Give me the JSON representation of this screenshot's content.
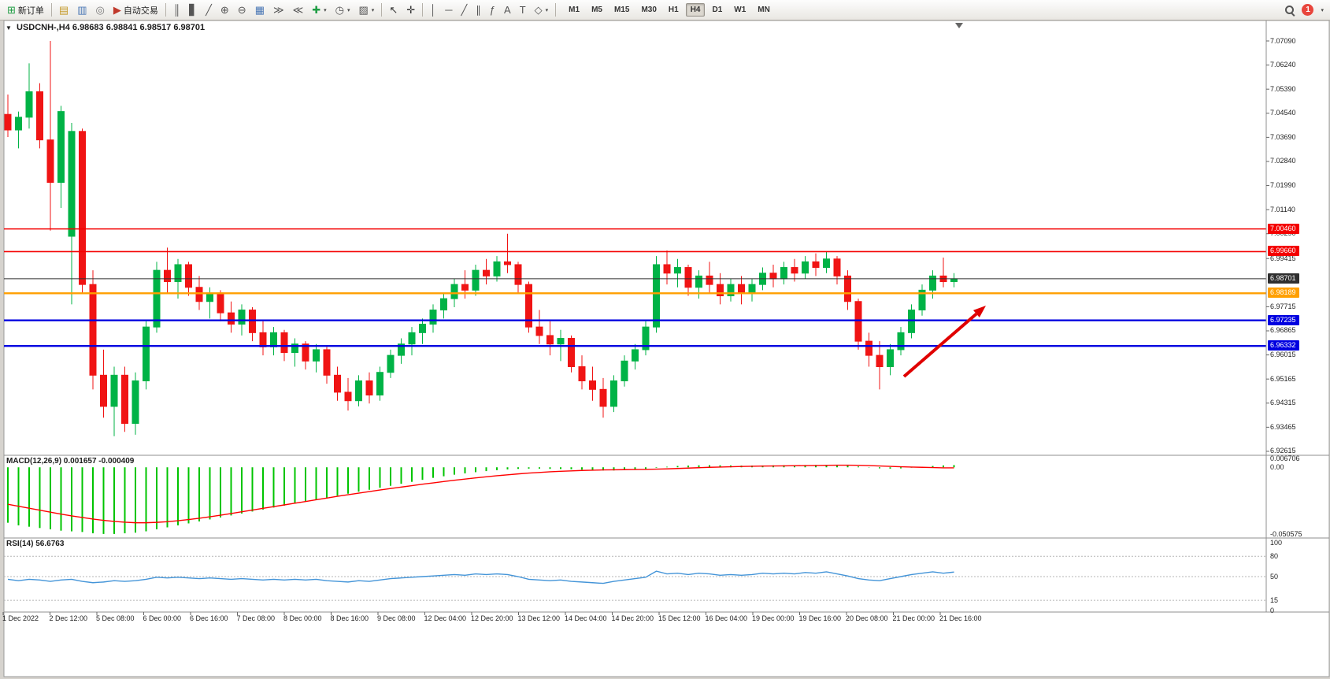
{
  "toolbar": {
    "items": [
      {
        "type": "button",
        "name": "new-order-button",
        "glyph": "⊞",
        "glyph_color": "#1f9d44",
        "label": "新订单"
      },
      {
        "type": "separator"
      },
      {
        "type": "button",
        "name": "market-watch-icon",
        "glyph": "▤",
        "glyph_color": "#c59a2a"
      },
      {
        "type": "button",
        "name": "data-window-icon",
        "glyph": "▥",
        "glyph_color": "#4a77b5"
      },
      {
        "type": "button",
        "name": "navigator-icon",
        "glyph": "◎",
        "glyph_color": "#777777"
      },
      {
        "type": "button",
        "name": "autotrading-button",
        "glyph": "▶",
        "glyph_color": "#c0392b",
        "label": "自动交易"
      },
      {
        "type": "separator"
      },
      {
        "type": "button",
        "name": "bar-chart-icon",
        "glyph": "║",
        "glyph_color": "#555555"
      },
      {
        "type": "button",
        "name": "candlestick-chart-icon",
        "glyph": "▋",
        "glyph_color": "#555555"
      },
      {
        "type": "button",
        "name": "line-chart-icon",
        "glyph": "╱",
        "glyph_color": "#555555"
      },
      {
        "type": "button",
        "name": "zoom-in-button",
        "glyph": "⊕",
        "glyph_color": "#555555"
      },
      {
        "type": "button",
        "name": "zoom-out-button",
        "glyph": "⊖",
        "glyph_color": "#555555"
      },
      {
        "type": "button",
        "name": "tile-windows-icon",
        "glyph": "▦",
        "glyph_color": "#4a77b5"
      },
      {
        "type": "button",
        "name": "auto-scroll-button",
        "glyph": "≫",
        "glyph_color": "#555555"
      },
      {
        "type": "button",
        "name": "chart-shift-button",
        "glyph": "≪",
        "glyph_color": "#555555"
      },
      {
        "type": "button",
        "name": "indicators-button",
        "glyph": "✚",
        "glyph_color": "#1f9d44",
        "caret": true
      },
      {
        "type": "button",
        "name": "periods-button",
        "glyph": "◷",
        "glyph_color": "#555555",
        "caret": true
      },
      {
        "type": "button",
        "name": "templates-button",
        "glyph": "▨",
        "glyph_color": "#555555",
        "caret": true
      },
      {
        "type": "separator"
      },
      {
        "type": "button",
        "name": "cursor-button",
        "glyph": "↖",
        "glyph_color": "#333333"
      },
      {
        "type": "button",
        "name": "crosshair-button",
        "glyph": "✛",
        "glyph_color": "#333333"
      },
      {
        "type": "separator"
      },
      {
        "type": "button",
        "name": "vertical-line-button",
        "glyph": "│",
        "glyph_color": "#555555"
      },
      {
        "type": "button",
        "name": "horizontal-line-button",
        "glyph": "─",
        "glyph_color": "#555555"
      },
      {
        "type": "button",
        "name": "trendline-button",
        "glyph": "╱",
        "glyph_color": "#555555"
      },
      {
        "type": "button",
        "name": "channel-button",
        "glyph": "∥",
        "glyph_color": "#555555"
      },
      {
        "type": "button",
        "name": "fibonacci-button",
        "glyph": "ƒ",
        "glyph_color": "#555555"
      },
      {
        "type": "button",
        "name": "text-button",
        "glyph": "A",
        "glyph_color": "#555555"
      },
      {
        "type": "button",
        "name": "text-label-button",
        "glyph": "T",
        "glyph_color": "#555555"
      },
      {
        "type": "button",
        "name": "shapes-button",
        "glyph": "◇",
        "glyph_color": "#555555",
        "caret": true
      },
      {
        "type": "separator"
      }
    ],
    "timeframes": {
      "options": [
        "M1",
        "M5",
        "M15",
        "M30",
        "H1",
        "H4",
        "D1",
        "W1",
        "MN"
      ],
      "active": "H4"
    },
    "notification_badge": "1"
  },
  "chart": {
    "title": "USDCNH-,H4 6.98683 6.98841 6.98517 6.98701",
    "symbol": "USDCNH-",
    "timeframe": "H4",
    "one_click_marker": "▼"
  },
  "chart_data": [
    {
      "type": "candlestick",
      "title": "USDCNH-,H4",
      "ohlc_display": {
        "open": "6.98683",
        "high": "6.98841",
        "low": "6.98517",
        "close": "6.98701"
      },
      "up_color": "#00b346",
      "down_color": "#f01414",
      "candles": [
        [
          7.045,
          7.052,
          7.037,
          7.0395
        ],
        [
          7.0395,
          7.046,
          7.033,
          7.044
        ],
        [
          7.044,
          7.063,
          7.04,
          7.053
        ],
        [
          7.053,
          7.056,
          7.033,
          7.036
        ],
        [
          7.036,
          7.0709,
          7.004,
          7.021
        ],
        [
          7.021,
          7.048,
          7.012,
          7.046
        ],
        [
          7.002,
          7.042,
          6.978,
          7.039
        ],
        [
          7.039,
          7.04,
          6.982,
          6.985
        ],
        [
          6.985,
          6.99,
          6.948,
          6.953
        ],
        [
          6.953,
          6.962,
          6.938,
          6.942
        ],
        [
          6.942,
          6.956,
          6.9315,
          6.953
        ],
        [
          6.953,
          6.956,
          6.933,
          6.936
        ],
        [
          6.936,
          6.954,
          6.932,
          6.951
        ],
        [
          6.951,
          6.972,
          6.948,
          6.97
        ],
        [
          6.97,
          6.993,
          6.968,
          6.99
        ],
        [
          6.99,
          6.998,
          6.982,
          6.986
        ],
        [
          6.986,
          6.994,
          6.98,
          6.992
        ],
        [
          6.992,
          6.993,
          6.981,
          6.984
        ],
        [
          6.984,
          6.988,
          6.976,
          6.979
        ],
        [
          6.979,
          6.984,
          6.973,
          6.982
        ],
        [
          6.982,
          6.983,
          6.972,
          6.975
        ],
        [
          6.975,
          6.979,
          6.968,
          6.971
        ],
        [
          6.971,
          6.978,
          6.967,
          6.976
        ],
        [
          6.976,
          6.977,
          6.965,
          6.968
        ],
        [
          6.968,
          6.972,
          6.96,
          6.963
        ],
        [
          6.963,
          6.97,
          6.96,
          6.968
        ],
        [
          6.968,
          6.969,
          6.958,
          6.961
        ],
        [
          6.961,
          6.966,
          6.956,
          6.964
        ],
        [
          6.964,
          6.965,
          6.955,
          6.958
        ],
        [
          6.958,
          6.964,
          6.954,
          6.962
        ],
        [
          6.962,
          6.963,
          6.95,
          6.953
        ],
        [
          6.953,
          6.956,
          6.944,
          6.947
        ],
        [
          6.947,
          6.952,
          6.9405,
          6.944
        ],
        [
          6.944,
          6.953,
          6.942,
          6.951
        ],
        [
          6.951,
          6.954,
          6.943,
          6.946
        ],
        [
          6.946,
          6.956,
          6.944,
          6.954
        ],
        [
          6.954,
          6.962,
          6.952,
          6.96
        ],
        [
          6.96,
          6.966,
          6.957,
          6.964
        ],
        [
          6.964,
          6.97,
          6.96,
          6.968
        ],
        [
          6.968,
          6.973,
          6.964,
          6.971
        ],
        [
          6.971,
          6.978,
          6.968,
          6.976
        ],
        [
          6.976,
          6.982,
          6.973,
          6.98
        ],
        [
          6.98,
          6.987,
          6.977,
          6.985
        ],
        [
          6.985,
          6.99,
          6.98,
          6.983
        ],
        [
          6.983,
          6.992,
          6.981,
          6.99
        ],
        [
          6.99,
          6.994,
          6.985,
          6.988
        ],
        [
          6.988,
          6.995,
          6.986,
          6.993
        ],
        [
          6.993,
          7.0029,
          6.989,
          6.992
        ],
        [
          6.992,
          6.993,
          6.982,
          6.985
        ],
        [
          6.985,
          6.986,
          6.968,
          6.97
        ],
        [
          6.97,
          6.976,
          6.964,
          6.967
        ],
        [
          6.967,
          6.972,
          6.96,
          6.964
        ],
        [
          6.964,
          6.969,
          6.958,
          6.966
        ],
        [
          6.966,
          6.967,
          6.954,
          6.956
        ],
        [
          6.956,
          6.96,
          6.948,
          6.951
        ],
        [
          6.951,
          6.956,
          6.944,
          6.948
        ],
        [
          6.948,
          6.952,
          6.938,
          6.942
        ],
        [
          6.942,
          6.953,
          6.94,
          6.951
        ],
        [
          6.951,
          6.96,
          6.949,
          6.958
        ],
        [
          6.958,
          6.964,
          6.955,
          6.962
        ],
        [
          6.962,
          6.972,
          6.96,
          6.97
        ],
        [
          6.97,
          6.995,
          6.968,
          6.992
        ],
        [
          6.992,
          6.997,
          6.985,
          6.989
        ],
        [
          6.989,
          6.994,
          6.984,
          6.991
        ],
        [
          6.991,
          6.992,
          6.981,
          6.984
        ],
        [
          6.984,
          6.99,
          6.98,
          6.988
        ],
        [
          6.988,
          6.993,
          6.982,
          6.985
        ],
        [
          6.985,
          6.989,
          6.978,
          6.981
        ],
        [
          6.981,
          6.987,
          6.979,
          6.985
        ],
        [
          6.985,
          6.988,
          6.978,
          6.982
        ],
        [
          6.982,
          6.987,
          6.979,
          6.985
        ],
        [
          6.985,
          6.991,
          6.983,
          6.989
        ],
        [
          6.989,
          6.992,
          6.984,
          6.987
        ],
        [
          6.987,
          6.993,
          6.985,
          6.991
        ],
        [
          6.991,
          6.994,
          6.986,
          6.989
        ],
        [
          6.989,
          6.995,
          6.987,
          6.993
        ],
        [
          6.993,
          6.996,
          6.988,
          6.991
        ],
        [
          6.991,
          6.9966,
          6.989,
          6.994
        ],
        [
          6.994,
          6.995,
          6.985,
          6.988
        ],
        [
          6.988,
          6.99,
          6.976,
          6.979
        ],
        [
          6.979,
          6.98,
          6.962,
          6.965
        ],
        [
          6.965,
          6.968,
          6.956,
          6.96
        ],
        [
          6.96,
          6.965,
          6.948,
          6.956
        ],
        [
          6.956,
          6.964,
          6.953,
          6.962
        ],
        [
          6.962,
          6.97,
          6.96,
          6.968
        ],
        [
          6.968,
          6.978,
          6.966,
          6.976
        ],
        [
          6.976,
          6.985,
          6.974,
          6.983
        ],
        [
          6.983,
          6.99,
          6.98,
          6.988
        ],
        [
          6.988,
          6.9945,
          6.984,
          6.986
        ],
        [
          6.986,
          6.989,
          6.984,
          6.98701
        ]
      ],
      "y_axis_labels": [
        "7.07090",
        "7.06240",
        "7.05390",
        "7.04540",
        "7.03690",
        "7.02840",
        "7.01990",
        "7.01140",
        "7.00290",
        "6.99415",
        "6.97715",
        "6.96865",
        "6.96015",
        "6.95165",
        "6.94315",
        "6.93465",
        "6.92615"
      ],
      "price_lines": [
        {
          "price": 7.0046,
          "label": "7.00460",
          "color": "#f40000",
          "width": 1.6
        },
        {
          "price": 6.9966,
          "label": "6.99660",
          "color": "#f40000",
          "width": 1.6
        },
        {
          "price": 6.98701,
          "label": "6.98701",
          "color": "#2f2f2f",
          "width": 1
        },
        {
          "price": 6.98189,
          "label": "6.98189",
          "color": "#ff9f00",
          "width": 2.4
        },
        {
          "price": 6.97235,
          "label": "6.97235",
          "color": "#0000e0",
          "width": 2.4
        },
        {
          "price": 6.96332,
          "label": "6.96332",
          "color": "#0000e0",
          "width": 2.4
        }
      ],
      "x_labels": [
        "1 Dec 2022",
        "2 Dec 12:00",
        "5 Dec 08:00",
        "6 Dec 00:00",
        "6 Dec 16:00",
        "7 Dec 08:00",
        "8 Dec 00:00",
        "8 Dec 16:00",
        "9 Dec 08:00",
        "12 Dec 04:00",
        "12 Dec 20:00",
        "13 Dec 12:00",
        "14 Dec 04:00",
        "14 Dec 20:00",
        "15 Dec 12:00",
        "16 Dec 04:00",
        "19 Dec 00:00",
        "19 Dec 16:00",
        "20 Dec 08:00",
        "21 Dec 00:00",
        "21 Dec 16:00"
      ],
      "annotation": {
        "type": "arrow",
        "color": "#e00000",
        "from_xy": [
          1148,
          478
        ],
        "to_xy": [
          1252,
          388
        ]
      }
    },
    {
      "type": "macd_histogram",
      "display": "MACD(12,26,9) 0.001657 -0.000409",
      "params": "12,26,9",
      "macd_value": 0.001657,
      "signal_value": -0.000409,
      "histogram_color": "#00c400",
      "signal_color": "#ff0000",
      "y_axis_labels": [
        "0.006706",
        "0.00",
        "-0.050575"
      ],
      "range": [
        -0.050575,
        0.006706
      ],
      "histogram": [
        -0.042,
        -0.044,
        -0.045,
        -0.046,
        -0.047,
        -0.048,
        -0.0485,
        -0.049,
        -0.05,
        -0.0505,
        -0.0505,
        -0.05,
        -0.0495,
        -0.0485,
        -0.047,
        -0.0455,
        -0.044,
        -0.0425,
        -0.041,
        -0.0395,
        -0.038,
        -0.0365,
        -0.035,
        -0.0335,
        -0.032,
        -0.0305,
        -0.029,
        -0.0275,
        -0.026,
        -0.0245,
        -0.023,
        -0.0215,
        -0.02,
        -0.0185,
        -0.017,
        -0.0155,
        -0.014,
        -0.0125,
        -0.011,
        -0.0095,
        -0.008,
        -0.0068,
        -0.0056,
        -0.0046,
        -0.0037,
        -0.0029,
        -0.0022,
        -0.0016,
        -0.0012,
        -0.001,
        -0.001,
        -0.0012,
        -0.0013,
        -0.0015,
        -0.0018,
        -0.0021,
        -0.0024,
        -0.0024,
        -0.0022,
        -0.0018,
        -0.0012,
        -0.0004,
        0.0004,
        0.001,
        0.0013,
        0.0015,
        0.0016,
        0.0015,
        0.0014,
        0.0013,
        0.0013,
        0.0014,
        0.0015,
        0.0016,
        0.0016,
        0.0017,
        0.0018,
        0.0019,
        0.0017,
        0.0013,
        0.0006,
        -0.0002,
        -0.0008,
        -0.001,
        -0.0008,
        -0.0003,
        0.0004,
        0.001,
        0.0014,
        0.001657
      ],
      "signal": [
        -0.028,
        -0.0295,
        -0.031,
        -0.0325,
        -0.034,
        -0.0355,
        -0.0368,
        -0.038,
        -0.0392,
        -0.0402,
        -0.041,
        -0.0416,
        -0.042,
        -0.042,
        -0.0417,
        -0.0412,
        -0.0405,
        -0.0396,
        -0.0386,
        -0.0375,
        -0.0363,
        -0.035,
        -0.0337,
        -0.0324,
        -0.0311,
        -0.0298,
        -0.0285,
        -0.0272,
        -0.0259,
        -0.0246,
        -0.0233,
        -0.022,
        -0.0208,
        -0.0196,
        -0.0184,
        -0.0172,
        -0.0161,
        -0.015,
        -0.0139,
        -0.0128,
        -0.0118,
        -0.0108,
        -0.0098,
        -0.0089,
        -0.008,
        -0.0072,
        -0.0064,
        -0.0057,
        -0.005,
        -0.0044,
        -0.0039,
        -0.0034,
        -0.003,
        -0.0027,
        -0.0024,
        -0.0022,
        -0.002,
        -0.0019,
        -0.0018,
        -0.0017,
        -0.0016,
        -0.0014,
        -0.0012,
        -0.0009,
        -0.0006,
        -0.0003,
        0.0,
        0.0002,
        0.0004,
        0.0006,
        0.0008,
        0.0009,
        0.001,
        0.0011,
        0.0012,
        0.0013,
        0.0014,
        0.0015,
        0.0016,
        0.0016,
        0.0015,
        0.0013,
        0.001,
        0.0007,
        0.0004,
        0.0002,
        0.0,
        -0.0002,
        -0.0004,
        -0.000409
      ]
    },
    {
      "type": "rsi_line",
      "display": "RSI(14) 56.6763",
      "period": 14,
      "value": 56.6763,
      "line_color": "#4394d8",
      "levels": [
        80,
        50,
        15
      ],
      "y_axis_labels": [
        "100",
        "80",
        "50",
        "15",
        "0"
      ],
      "range": [
        0,
        100
      ],
      "values": [
        46,
        44,
        46,
        45,
        43,
        45,
        46,
        43,
        41,
        42,
        44,
        43,
        44,
        46,
        49,
        48,
        49,
        48,
        47,
        48,
        47,
        46,
        47,
        46,
        45,
        46,
        45,
        46,
        45,
        46,
        44,
        43,
        42,
        44,
        43,
        45,
        47,
        48,
        49,
        50,
        51,
        52,
        53,
        52,
        54,
        53,
        54,
        53,
        50,
        46,
        45,
        44,
        45,
        43,
        42,
        41,
        40,
        43,
        45,
        47,
        49,
        58,
        54,
        55,
        53,
        55,
        54,
        52,
        53,
        52,
        53,
        55,
        54,
        55,
        54,
        56,
        55,
        57,
        54,
        51,
        47,
        45,
        44,
        47,
        50,
        53,
        55,
        57,
        55,
        56.6763
      ]
    }
  ]
}
